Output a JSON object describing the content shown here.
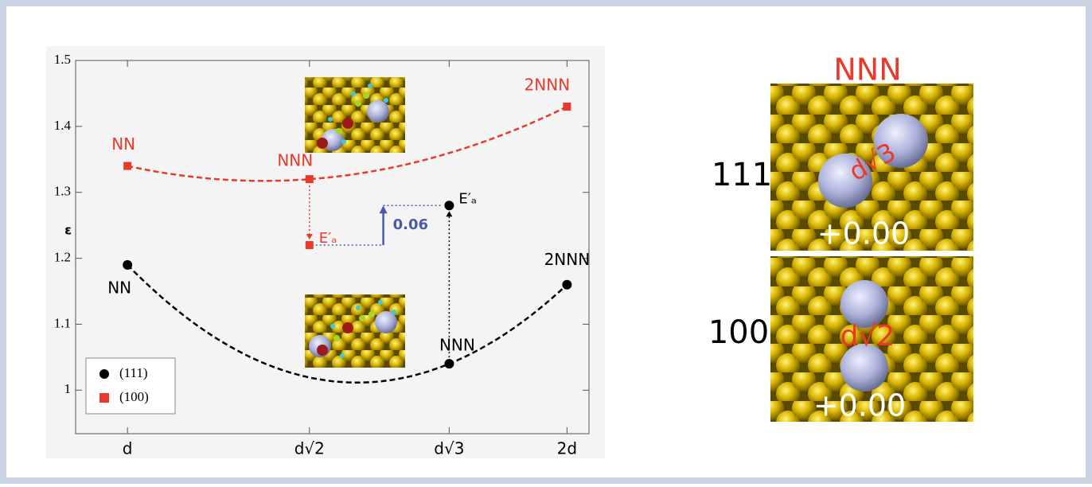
{
  "chart_data": {
    "type": "scatter",
    "xlim": [
      0.882,
      2.05
    ],
    "xticks": [
      {
        "value": 1,
        "label": "d"
      },
      {
        "value": 1.414,
        "label": "d√2"
      },
      {
        "value": 1.732,
        "label": "d√3"
      },
      {
        "value": 2,
        "label": "2d"
      }
    ],
    "ylim": [
      0.934,
      1.5
    ],
    "yticks": [
      1,
      1.1,
      1.2,
      1.3,
      1.4,
      1.5
    ],
    "legend": "lower left",
    "series": [
      {
        "name": "(111)",
        "color": "#000000",
        "marker": "circle",
        "x": [
          1,
          1.732,
          2
        ],
        "values": [
          1.19,
          1.04,
          1.16
        ],
        "point_labels": [
          "NN",
          "NNN",
          "2NNN"
        ]
      },
      {
        "name": "(100)",
        "color": "#e8392b",
        "marker": "square",
        "x": [
          1,
          1.414,
          2
        ],
        "values": [
          1.34,
          1.32,
          1.43
        ],
        "point_labels": [
          "NN",
          "NNN",
          "2NNN"
        ]
      }
    ],
    "activated": [
      {
        "label": "E′ₐ",
        "color": "#000000",
        "x": 1.732,
        "value": 1.28
      },
      {
        "label": "E′ₐ",
        "color": "#e8392b",
        "x": 1.414,
        "value": 1.22
      }
    ],
    "gap_label": "0.06"
  },
  "side_panel": {
    "title": "NNN",
    "rows": [
      {
        "label": "111",
        "distance": "d√3",
        "energy": "+0.00"
      },
      {
        "label": "100",
        "distance": "d√2",
        "energy": "+0.00"
      }
    ]
  }
}
